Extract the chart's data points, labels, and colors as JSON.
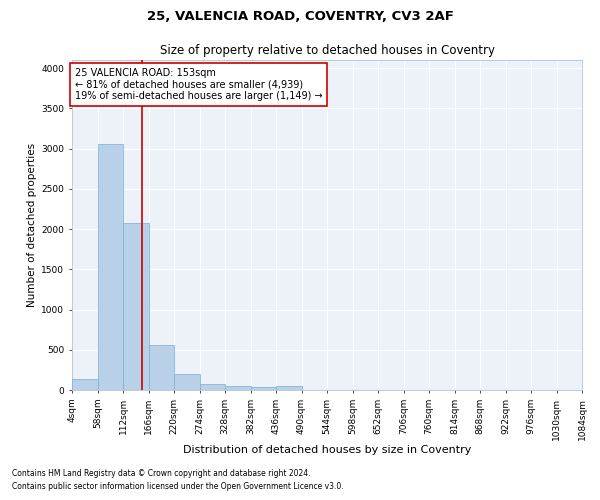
{
  "title1": "25, VALENCIA ROAD, COVENTRY, CV3 2AF",
  "title2": "Size of property relative to detached houses in Coventry",
  "xlabel": "Distribution of detached houses by size in Coventry",
  "ylabel": "Number of detached properties",
  "footnote1": "Contains HM Land Registry data © Crown copyright and database right 2024.",
  "footnote2": "Contains public sector information licensed under the Open Government Licence v3.0.",
  "property_label": "25 VALENCIA ROAD: 153sqm",
  "annotation_line1": "← 81% of detached houses are smaller (4,939)",
  "annotation_line2": "19% of semi-detached houses are larger (1,149) →",
  "bar_edges": [
    4,
    58,
    112,
    166,
    220,
    274,
    328,
    382,
    436,
    490,
    544,
    598,
    652,
    706,
    760,
    814,
    868,
    922,
    976,
    1030,
    1084
  ],
  "bar_heights": [
    140,
    3060,
    2070,
    560,
    200,
    75,
    50,
    35,
    50,
    0,
    0,
    0,
    0,
    0,
    0,
    0,
    0,
    0,
    0,
    0
  ],
  "bar_color": "#b8d0e8",
  "bar_edgecolor": "#7aafd4",
  "vline_color": "#cc0000",
  "vline_x": 153,
  "annotation_box_edgecolor": "#cc0000",
  "annotation_box_facecolor": "#ffffff",
  "ylim": [
    0,
    4100
  ],
  "yticks": [
    0,
    500,
    1000,
    1500,
    2000,
    2500,
    3000,
    3500,
    4000
  ],
  "background_color": "#edf2f9",
  "grid_color": "#ffffff",
  "title1_fontsize": 9.5,
  "title2_fontsize": 8.5,
  "xlabel_fontsize": 8,
  "ylabel_fontsize": 7.5,
  "tick_fontsize": 6.5,
  "annotation_fontsize": 7,
  "footnote_fontsize": 5.5
}
